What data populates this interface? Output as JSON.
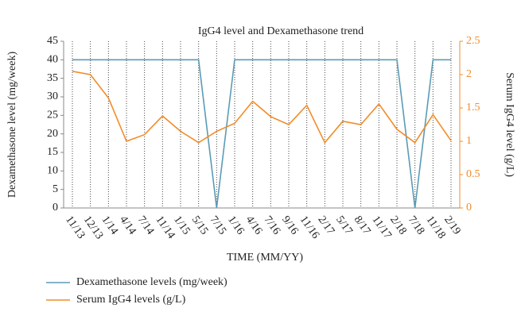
{
  "chart_data": {
    "type": "line",
    "title": "IgG4 level and Dexamethasone trend",
    "x_label": "TIME (MM/YY)",
    "y_label": "Dexamethasone level (mg/week)",
    "y2_label": "Serum IgG4 level (g/L)",
    "categories": [
      "11/13",
      "12/13",
      "1/14",
      "4/14",
      "7/14",
      "11/14",
      "1/15",
      "5/15",
      "7/15",
      "1/16",
      "4/16",
      "7/16",
      "9/16",
      "11/16",
      "2/17",
      "5/17",
      "8/17",
      "11/17",
      "2/18",
      "7/18",
      "11/18",
      "2/19"
    ],
    "series": [
      {
        "name": "Dexamethasone levels (mg/week)",
        "color": "#5b9bb5",
        "values": [
          40,
          40,
          40,
          40,
          40,
          40,
          40,
          40,
          0,
          40,
          40,
          40,
          40,
          40,
          40,
          40,
          40,
          40,
          40,
          0,
          40,
          40
        ]
      },
      {
        "name": "Serum IgG4 levels (g/L)",
        "color": "#f28c28",
        "axis": "y2",
        "values": [
          2.05,
          2.0,
          1.65,
          1.0,
          1.1,
          1.38,
          1.15,
          0.98,
          1.15,
          1.27,
          1.6,
          1.37,
          1.25,
          1.54,
          0.98,
          1.3,
          1.25,
          1.56,
          1.18,
          0.98,
          1.4,
          1.01
        ]
      }
    ],
    "ylim": [
      0,
      45
    ],
    "yticks": [
      0,
      5,
      10,
      15,
      20,
      25,
      30,
      35,
      40,
      45
    ],
    "y2lim": [
      0,
      2.5
    ],
    "y2ticks": [
      0,
      0.5,
      1,
      1.5,
      2,
      2.5
    ],
    "grid": true,
    "legend": "bottom-left"
  }
}
